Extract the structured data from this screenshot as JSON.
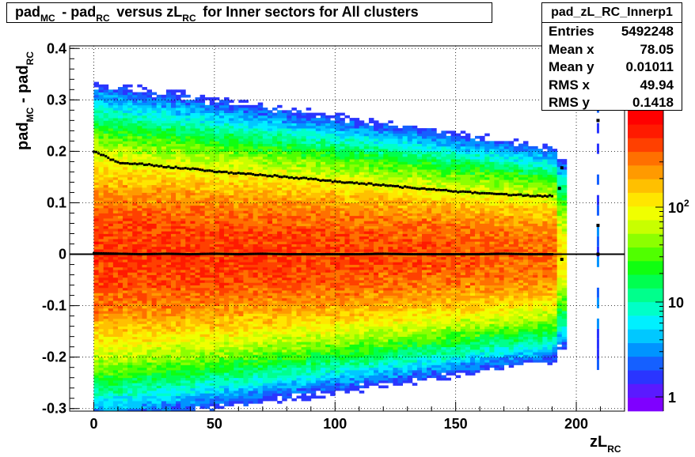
{
  "stats": {
    "name": "pad_zL_RC_Innerp1",
    "rows": [
      {
        "label": "Entries",
        "value": "5492248"
      },
      {
        "label": "Mean x",
        "value": "78.05"
      },
      {
        "label": "Mean y",
        "value": "0.01011"
      },
      {
        "label": "RMS x",
        "value": "49.94"
      },
      {
        "label": "RMS y",
        "value": "0.1418"
      }
    ]
  },
  "chart_data": {
    "type": "heatmap",
    "title_parts": [
      {
        "text": "pad",
        "sub": "MC"
      },
      {
        "text": " - pad",
        "sub": "RC"
      },
      {
        "text": " versus zL",
        "sub": "RC"
      },
      {
        "text": " for Inner sectors for All clusters",
        "sub": ""
      }
    ],
    "xlabel": {
      "text": "zL",
      "sub": "RC"
    },
    "ylabel": {
      "parts": [
        {
          "text": "pad",
          "sub": "MC"
        },
        {
          "text": " - pad",
          "sub": "RC"
        }
      ]
    },
    "xlim": [
      -10,
      220
    ],
    "ylim": [
      -0.305,
      0.405
    ],
    "x_ticks": [
      0,
      50,
      100,
      150,
      200
    ],
    "x_tick_labels": [
      "0",
      "50",
      "100",
      "150",
      "200"
    ],
    "y_ticks": [
      -0.3,
      -0.2,
      -0.1,
      0,
      0.1,
      0.2,
      0.3,
      0.4
    ],
    "y_tick_labels": [
      "-0.3",
      "-0.2",
      "-0.1",
      "0",
      "0.1",
      "0.2",
      "0.3",
      "0.4"
    ],
    "z_scale": "log",
    "z_ticks": [
      {
        "value": 1,
        "base": "1",
        "exp": ""
      },
      {
        "value": 10,
        "base": "10",
        "exp": ""
      },
      {
        "value": 100,
        "base": "10",
        "exp": "2"
      }
    ],
    "grid": true,
    "filled_x_range": [
      0,
      195
    ],
    "extra_x_column": 209,
    "profile_mean": {
      "x": [
        0,
        10,
        20,
        30,
        40,
        50,
        60,
        70,
        80,
        90,
        100,
        110,
        120,
        130,
        140,
        150,
        160,
        170,
        180,
        190,
        195
      ],
      "y": [
        0.002,
        0.001,
        0.0,
        0.001,
        0.0,
        0.001,
        0.0,
        0.001,
        0.0,
        0.0,
        0.0,
        0.0,
        0.001,
        0.0,
        0.0,
        0.0,
        0.0,
        0.001,
        0.0,
        0.0,
        -0.01
      ]
    },
    "profile_rms": {
      "x": [
        0,
        10,
        20,
        30,
        40,
        50,
        60,
        70,
        80,
        90,
        100,
        110,
        120,
        130,
        140,
        150,
        160,
        170,
        180,
        190,
        195
      ],
      "y": [
        0.2,
        0.178,
        0.175,
        0.17,
        0.166,
        0.161,
        0.157,
        0.154,
        0.15,
        0.146,
        0.141,
        0.138,
        0.134,
        0.13,
        0.126,
        0.122,
        0.119,
        0.116,
        0.114,
        0.113,
        0.168
      ]
    },
    "outlier_points": [
      {
        "x": 209,
        "y": 0.26
      },
      {
        "x": 209,
        "y": 0.056
      },
      {
        "x": 209,
        "y": 0.0
      }
    ]
  }
}
